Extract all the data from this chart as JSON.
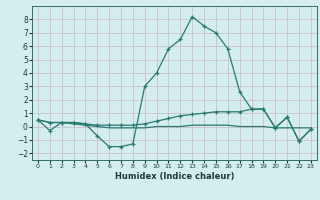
{
  "x": [
    0,
    1,
    2,
    3,
    4,
    5,
    6,
    7,
    8,
    9,
    10,
    11,
    12,
    13,
    14,
    15,
    16,
    17,
    18,
    19,
    20,
    21,
    22,
    23
  ],
  "y_main": [
    0.5,
    -0.3,
    0.3,
    0.3,
    0.2,
    -0.7,
    -1.5,
    -1.5,
    -1.3,
    3.0,
    4.0,
    5.8,
    6.5,
    8.2,
    7.5,
    7.0,
    5.8,
    2.6,
    1.3,
    1.3,
    -0.1,
    0.7,
    -1.1,
    -0.2
  ],
  "y_rise": [
    0.5,
    0.3,
    0.3,
    0.3,
    0.2,
    0.1,
    0.1,
    0.1,
    0.1,
    0.2,
    0.4,
    0.6,
    0.8,
    0.9,
    1.0,
    1.1,
    1.1,
    1.1,
    1.3,
    1.3,
    -0.1,
    0.7,
    -1.1,
    -0.2
  ],
  "y_flat": [
    0.5,
    0.3,
    0.3,
    0.2,
    0.1,
    0.0,
    -0.1,
    -0.1,
    -0.1,
    -0.1,
    0.0,
    0.0,
    0.0,
    0.1,
    0.1,
    0.1,
    0.1,
    0.0,
    0.0,
    0.0,
    -0.1,
    -0.1,
    -0.1,
    -0.1
  ],
  "color": "#2a7a70",
  "bg_color": "#d4eeee",
  "grid_color": "#b8d8d8",
  "xlabel": "Humidex (Indice chaleur)",
  "ylim": [
    -2.5,
    9.0
  ],
  "xlim": [
    -0.5,
    23.5
  ],
  "yticks": [
    -2,
    -1,
    0,
    1,
    2,
    3,
    4,
    5,
    6,
    7,
    8
  ]
}
